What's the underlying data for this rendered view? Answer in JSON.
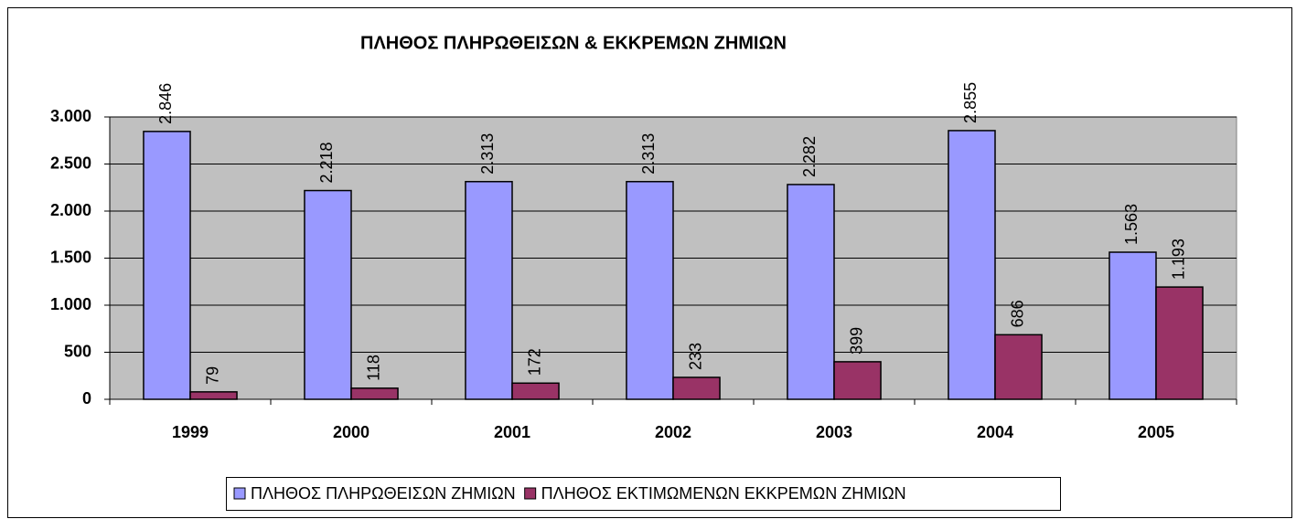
{
  "chart_data": {
    "type": "bar",
    "title": "ΠΛΗΘΟΣ ΠΛΗΡΩΘΕΙΣΩΝ  &  ΕΚΚΡΕΜΩΝ  ΖΗΜΙΩΝ",
    "categories": [
      "1999",
      "2000",
      "2001",
      "2002",
      "2003",
      "2004",
      "2005"
    ],
    "series": [
      {
        "name": "ΠΛΗΘΟΣ ΠΛΗΡΩΘΕΙΣΩΝ ΖΗΜΙΩΝ",
        "color": "#9999ff",
        "values": [
          2846,
          2218,
          2313,
          2313,
          2282,
          2855,
          1563
        ],
        "value_labels": [
          "2.846",
          "2.218",
          "2.313",
          "2.313",
          "2.282",
          "2.855",
          "1.563"
        ]
      },
      {
        "name": "ΠΛΗΘΟΣ ΕΚΤΙΜΩΜΕΝΩΝ ΕΚΚΡΕΜΩΝ ΖΗΜΙΩΝ",
        "color": "#993366",
        "values": [
          79,
          118,
          172,
          233,
          399,
          686,
          1193
        ],
        "value_labels": [
          "79",
          "118",
          "172",
          "233",
          "399",
          "686",
          "1.193"
        ]
      }
    ],
    "ylim": [
      0,
      3000
    ],
    "yticks": [
      0,
      500,
      {
        "value": 1000,
        "label": "1.000"
      },
      {
        "value": 1500,
        "label": "1.500"
      },
      {
        "value": 2000,
        "label": "2.000"
      },
      {
        "value": 2500,
        "label": "2.500"
      },
      {
        "value": 3000,
        "label": "3.000"
      }
    ],
    "grid": true,
    "legend": "bottom"
  }
}
